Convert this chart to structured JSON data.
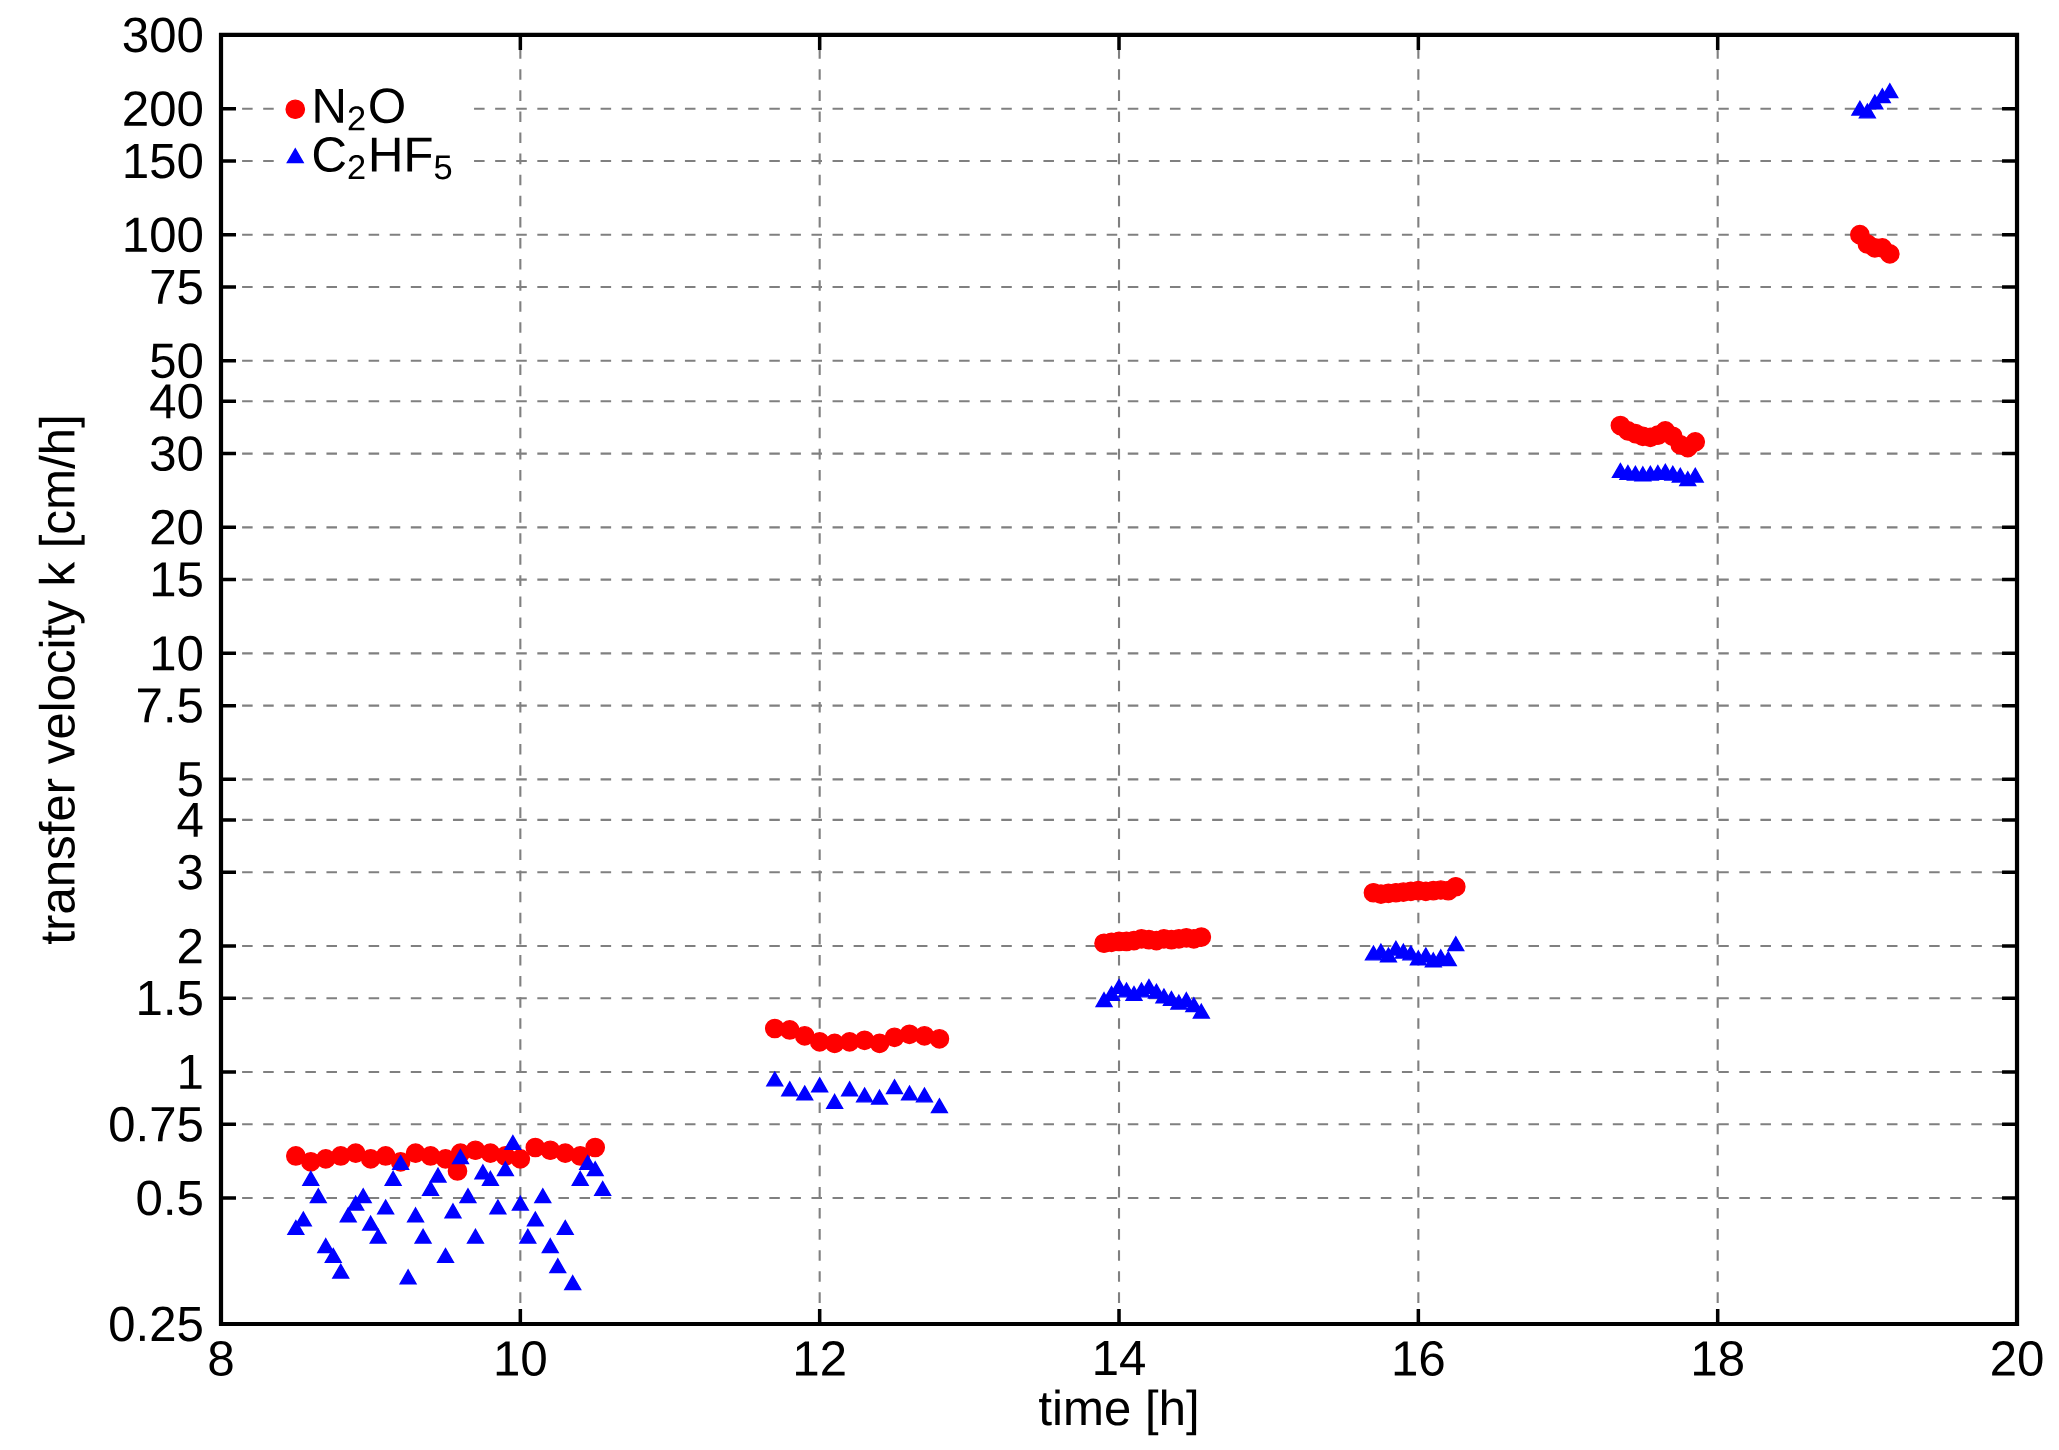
{
  "chart_data": {
    "type": "scatter",
    "xlabel": "time [h]",
    "ylabel": "transfer velocity k [cm/h]",
    "xlim": [
      8,
      20
    ],
    "xticks": [
      8,
      10,
      12,
      14,
      16,
      18,
      20
    ],
    "ylim": [
      0.25,
      300
    ],
    "yticks": [
      0.25,
      0.5,
      0.75,
      1,
      1.5,
      2,
      3,
      4,
      5,
      7.5,
      10,
      15,
      20,
      30,
      40,
      50,
      75,
      100,
      150,
      200,
      300
    ],
    "log": "y",
    "grid": true,
    "legend": "top left",
    "series": [
      {
        "name": "N$_{2}$O",
        "color": "#ff0000",
        "marker": "circle",
        "x": [
          8.5,
          8.6,
          8.7,
          8.8,
          8.9,
          9.0,
          9.1,
          9.2,
          9.3,
          9.4,
          9.5,
          9.58,
          9.6,
          9.7,
          9.8,
          9.9,
          10.0,
          10.1,
          10.2,
          10.3,
          10.4,
          10.5,
          11.7,
          11.8,
          11.9,
          12.0,
          12.1,
          12.2,
          12.3,
          12.4,
          12.5,
          12.6,
          12.7,
          12.8,
          13.9,
          13.95,
          14.0,
          14.05,
          14.1,
          14.15,
          14.2,
          14.25,
          14.3,
          14.35,
          14.4,
          14.45,
          14.5,
          14.55,
          15.7,
          15.75,
          15.8,
          15.85,
          15.9,
          15.95,
          16.0,
          16.05,
          16.1,
          16.15,
          16.2,
          16.25,
          17.35,
          17.4,
          17.45,
          17.5,
          17.55,
          17.6,
          17.65,
          17.7,
          17.75,
          17.8,
          17.85,
          18.95,
          19.0,
          19.05,
          19.1,
          19.15
        ],
        "values": [
          0.63,
          0.61,
          0.62,
          0.63,
          0.64,
          0.62,
          0.63,
          0.61,
          0.64,
          0.63,
          0.62,
          0.58,
          0.64,
          0.65,
          0.64,
          0.63,
          0.62,
          0.66,
          0.65,
          0.64,
          0.63,
          0.66,
          1.27,
          1.26,
          1.22,
          1.18,
          1.17,
          1.18,
          1.19,
          1.17,
          1.21,
          1.23,
          1.22,
          1.2,
          2.03,
          2.04,
          2.05,
          2.05,
          2.06,
          2.08,
          2.07,
          2.06,
          2.08,
          2.07,
          2.08,
          2.09,
          2.08,
          2.1,
          2.68,
          2.66,
          2.67,
          2.68,
          2.69,
          2.7,
          2.71,
          2.7,
          2.71,
          2.72,
          2.71,
          2.77,
          35,
          34,
          33.5,
          33,
          32.8,
          33.2,
          34,
          33,
          31.5,
          31,
          32,
          100,
          95,
          93,
          93,
          90
        ]
      },
      {
        "name": "C$_{2}$HF$_{5}$",
        "color": "#0000ff",
        "marker": "triangle",
        "x": [
          8.5,
          8.55,
          8.6,
          8.65,
          8.7,
          8.75,
          8.8,
          8.85,
          8.9,
          8.95,
          9.0,
          9.05,
          9.1,
          9.15,
          9.2,
          9.25,
          9.3,
          9.35,
          9.4,
          9.45,
          9.5,
          9.55,
          9.6,
          9.65,
          9.7,
          9.75,
          9.8,
          9.85,
          9.9,
          9.95,
          10.0,
          10.05,
          10.1,
          10.15,
          10.2,
          10.25,
          10.3,
          10.35,
          10.4,
          10.45,
          10.5,
          10.55,
          11.7,
          11.8,
          11.9,
          12.0,
          12.1,
          12.2,
          12.3,
          12.4,
          12.5,
          12.6,
          12.7,
          12.8,
          13.9,
          13.95,
          14.0,
          14.05,
          14.1,
          14.15,
          14.2,
          14.25,
          14.3,
          14.35,
          14.4,
          14.45,
          14.5,
          14.55,
          15.7,
          15.75,
          15.8,
          15.85,
          15.9,
          15.95,
          16.0,
          16.05,
          16.1,
          16.15,
          16.2,
          16.25,
          17.35,
          17.4,
          17.45,
          17.5,
          17.55,
          17.6,
          17.65,
          17.7,
          17.75,
          17.8,
          17.85,
          18.95,
          19.0,
          19.05,
          19.1,
          19.15
        ],
        "values": [
          0.42,
          0.44,
          0.55,
          0.5,
          0.38,
          0.36,
          0.33,
          0.45,
          0.48,
          0.5,
          0.43,
          0.4,
          0.47,
          0.55,
          0.6,
          0.32,
          0.45,
          0.4,
          0.52,
          0.56,
          0.36,
          0.46,
          0.62,
          0.5,
          0.4,
          0.57,
          0.55,
          0.47,
          0.58,
          0.67,
          0.48,
          0.4,
          0.44,
          0.5,
          0.38,
          0.34,
          0.42,
          0.31,
          0.55,
          0.6,
          0.58,
          0.52,
          0.95,
          0.9,
          0.88,
          0.92,
          0.84,
          0.9,
          0.87,
          0.86,
          0.91,
          0.88,
          0.87,
          0.82,
          1.47,
          1.52,
          1.58,
          1.55,
          1.52,
          1.55,
          1.58,
          1.54,
          1.5,
          1.48,
          1.45,
          1.47,
          1.43,
          1.38,
          1.9,
          1.92,
          1.88,
          1.95,
          1.92,
          1.9,
          1.85,
          1.88,
          1.83,
          1.86,
          1.84,
          2.0,
          27,
          26.7,
          26.6,
          26.5,
          26.6,
          26.7,
          26.9,
          26.6,
          26.3,
          25.8,
          26.3,
          198,
          195,
          205,
          212,
          218
        ]
      }
    ]
  }
}
